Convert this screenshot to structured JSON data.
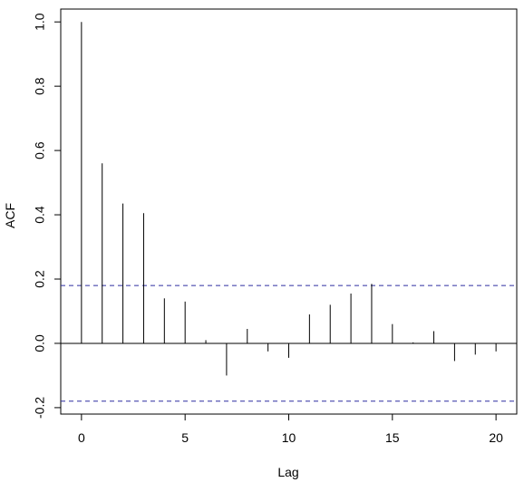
{
  "chart_data": {
    "type": "bar",
    "title": "",
    "xlabel": "Lag",
    "ylabel": "ACF",
    "xlim": [
      -1,
      21
    ],
    "ylim": [
      -0.22,
      1.04
    ],
    "x_ticks": [
      0,
      5,
      10,
      15,
      20
    ],
    "x_tick_labels": [
      "0",
      "5",
      "10",
      "15",
      "20"
    ],
    "y_ticks": [
      -0.2,
      0.0,
      0.2,
      0.4,
      0.6,
      0.8,
      1.0
    ],
    "y_tick_labels": [
      "-0.2",
      "0.0",
      "0.2",
      "0.4",
      "0.6",
      "0.8",
      "1.0"
    ],
    "grid": false,
    "lags": [
      0,
      1,
      2,
      3,
      4,
      5,
      6,
      7,
      8,
      9,
      10,
      11,
      12,
      13,
      14,
      15,
      16,
      17,
      18,
      19,
      20
    ],
    "values": [
      1.0,
      0.56,
      0.435,
      0.405,
      0.14,
      0.13,
      0.01,
      -0.1,
      0.045,
      -0.025,
      -0.045,
      0.09,
      0.12,
      0.155,
      0.185,
      0.06,
      0.003,
      0.038,
      -0.055,
      -0.035,
      -0.025
    ],
    "confidence_bounds": [
      0.18,
      -0.18
    ],
    "colors": {
      "spike": "#000000",
      "bound_line": "#2f2fa0",
      "axis": "#000000"
    }
  }
}
